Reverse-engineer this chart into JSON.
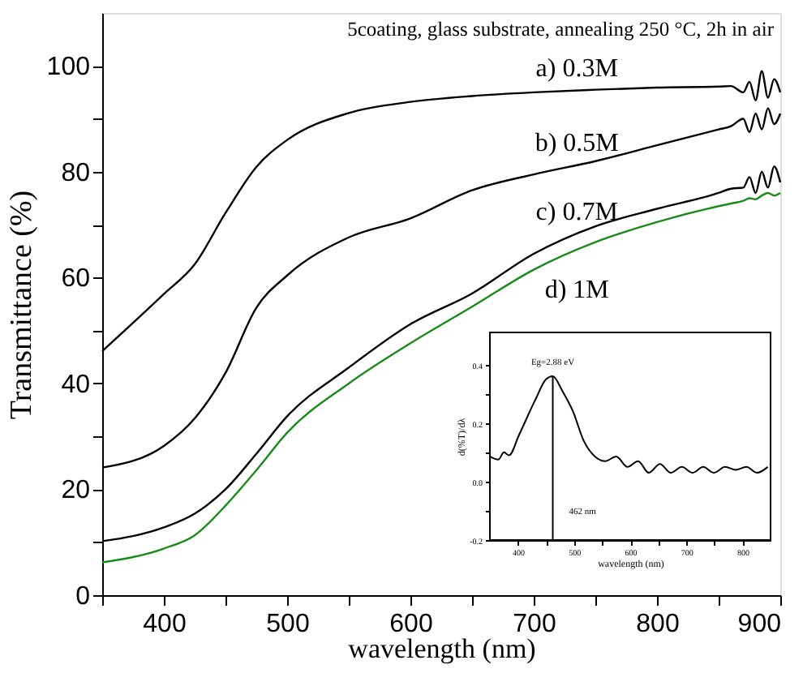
{
  "chart_data": [
    {
      "type": "line",
      "xlabel": "wavelength (nm)",
      "ylabel": "Transmittance (%)",
      "annotations": [
        "5coating, glass substrate, annealing 250 °C, 2h in air"
      ],
      "x": [
        350,
        400,
        425,
        450,
        475,
        500,
        550,
        600,
        650,
        700,
        750,
        800,
        850,
        860,
        870,
        875,
        880,
        885,
        890,
        895,
        900
      ],
      "series": [
        {
          "name": "a) 0.3M",
          "color": "#000000",
          "values": [
            46.1,
            56.9,
            62.5,
            72.2,
            80.9,
            86,
            91.1,
            93.2,
            94.3,
            95,
            95.5,
            95.9,
            96.1,
            96.2,
            95,
            97,
            93.5,
            99,
            94,
            97.5,
            95
          ]
        },
        {
          "name": "b) 0.5M",
          "color": "#000000",
          "values": [
            24.1,
            28.2,
            33.4,
            42,
            54.3,
            60.4,
            67.6,
            71.2,
            76.5,
            79.5,
            82,
            85,
            88,
            88.6,
            90,
            87.5,
            91,
            88,
            92,
            89,
            91
          ]
        },
        {
          "name": "c) 0.7M",
          "color": "#000000",
          "values": [
            10.2,
            12.8,
            15.4,
            20,
            26.7,
            33.8,
            43,
            51.2,
            57,
            64.5,
            69.7,
            73,
            76,
            76.8,
            77,
            79,
            76,
            80,
            77,
            81,
            78
          ]
        },
        {
          "name": "d) 1M",
          "color": "#1a8a1a",
          "values": [
            6.2,
            8.8,
            11.3,
            16.9,
            23.6,
            30.7,
            40,
            47.6,
            54.5,
            61.5,
            66.7,
            70.5,
            73.5,
            74,
            74.5,
            75,
            74.8,
            75.5,
            76,
            75.5,
            76
          ]
        }
      ],
      "xlim": [
        350,
        900
      ],
      "xticks": [
        {
          "value": 350,
          "label": null
        },
        400,
        {
          "value": 450,
          "label": null
        },
        500,
        {
          "value": 550,
          "label": null
        },
        600,
        {
          "value": 650,
          "label": null
        },
        700,
        {
          "value": 750,
          "label": null
        },
        800,
        {
          "value": 850,
          "label": null
        },
        900
      ],
      "ylim": [
        0,
        110
      ],
      "yticks": [
        0,
        {
          "value": 10,
          "label": null
        },
        20,
        {
          "value": 30,
          "label": null
        },
        40,
        {
          "value": 50,
          "label": null
        },
        60,
        {
          "value": 70,
          "label": null
        },
        80,
        {
          "value": 90,
          "label": null
        },
        100
      ],
      "line_style": "solid"
    },
    {
      "type": "line",
      "xlabel": "wavelength (nm)",
      "ylabel": "d(%T)/dλ",
      "annotations": [
        {
          "text": "Eg=2.88 eV",
          "x": 462,
          "y": 0.36
        },
        {
          "text": "462 nm",
          "x": 462,
          "y": -0.1
        }
      ],
      "x": [
        350,
        365,
        375,
        384,
        402,
        431,
        450,
        462,
        479,
        498,
        517,
        537,
        556,
        575,
        595,
        614,
        633,
        653,
        672,
        692,
        711,
        730,
        749,
        769,
        788,
        807,
        826,
        845
      ],
      "series": [
        {
          "color": "#000000",
          "values": [
            0.086,
            0.075,
            0.1,
            0.09,
            0.16,
            0.28,
            0.35,
            0.36,
            0.31,
            0.24,
            0.14,
            0.086,
            0.07,
            0.086,
            0.05,
            0.07,
            0.03,
            0.06,
            0.03,
            0.05,
            0.03,
            0.05,
            0.03,
            0.05,
            0.04,
            0.05,
            0.03,
            0.05
          ]
        }
      ],
      "ref_lines": [
        {
          "axis": "x",
          "value": 462
        }
      ],
      "xlim": [
        350,
        850
      ],
      "xticks": [
        400,
        {
          "value": 450,
          "label": null
        },
        500,
        {
          "value": 550,
          "label": null
        },
        600,
        {
          "value": 650,
          "label": null
        },
        700,
        {
          "value": 750,
          "label": null
        },
        800
      ],
      "ylim": [
        -0.2,
        0.51
      ],
      "yticks": [
        -0.2,
        {
          "value": -0.1,
          "label": null
        },
        {
          "value": 0,
          "label": "0.0"
        },
        {
          "value": 0.1,
          "label": null
        },
        0.2,
        {
          "value": 0.3,
          "label": null
        },
        0.4
      ],
      "line_style": "solid"
    }
  ]
}
